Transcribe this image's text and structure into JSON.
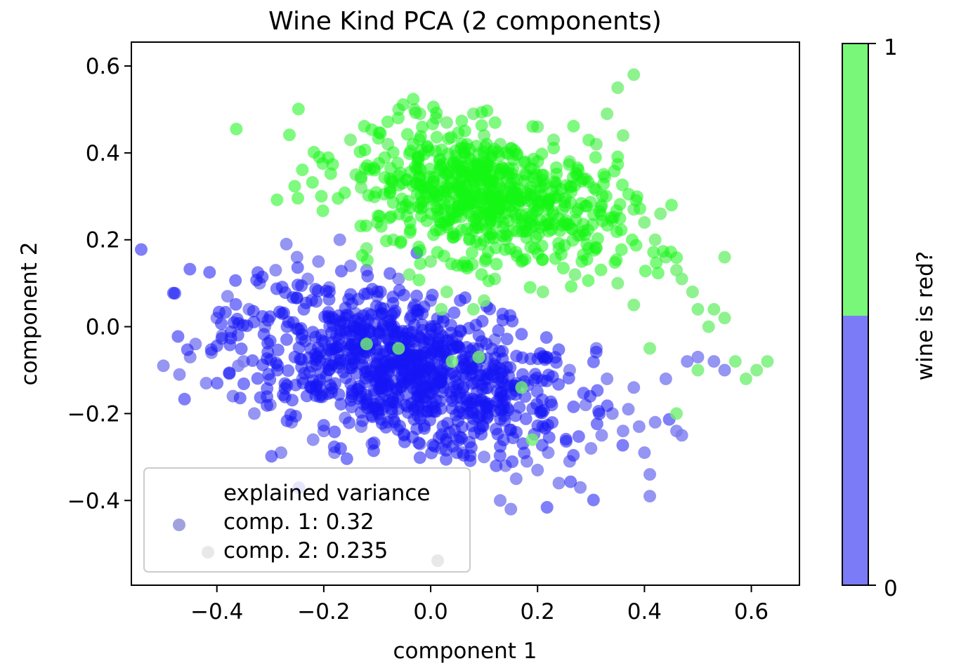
{
  "chart_data": {
    "type": "scatter",
    "title": "Wine Kind PCA (2 components)",
    "xlabel": "component 1",
    "ylabel": "component 2",
    "xlim": [
      -0.56,
      0.69
    ],
    "ylim": [
      -0.595,
      0.655
    ],
    "x_ticks": [
      "−0.4",
      "−0.2",
      "0.0",
      "0.2",
      "0.4",
      "0.6"
    ],
    "x_tick_values": [
      -0.4,
      -0.2,
      0.0,
      0.2,
      0.4,
      0.6
    ],
    "y_ticks": [
      "−0.4",
      "−0.2",
      "0.0",
      "0.2",
      "0.4",
      "0.6"
    ],
    "y_tick_values": [
      -0.4,
      -0.2,
      0.0,
      0.2,
      0.4,
      0.6
    ],
    "grid": false,
    "legend_placement": "lower-left",
    "legend": {
      "lines": [
        "explained variance",
        "comp. 1: 0.32",
        "comp. 2: 0.235"
      ]
    },
    "colorbar": {
      "label": "wine is red?",
      "ticks": [
        "0",
        "1"
      ],
      "tick_values": [
        0,
        1
      ],
      "colors": [
        "#7b7bf7",
        "#78f778"
      ],
      "boundary": 0.5
    },
    "series": [
      {
        "class_value": 0,
        "color": "#1515f5",
        "outlier_color": "#7b7bf0",
        "cluster": {
          "center": [
            -0.05,
            -0.1
          ],
          "spread": [
            0.16,
            0.08
          ],
          "tilt": -0.35
        },
        "points": [
          [
            -0.5,
            -0.09
          ],
          [
            -0.47,
            -0.11
          ],
          [
            -0.45,
            -0.07
          ],
          [
            -0.42,
            -0.13
          ],
          [
            -0.44,
            -0.04
          ],
          [
            -0.41,
            -0.06
          ],
          [
            -0.39,
            -0.02
          ],
          [
            -0.4,
            0.02
          ],
          [
            -0.38,
            0.07
          ],
          [
            -0.37,
            -0.16
          ],
          [
            -0.36,
            -0.09
          ],
          [
            -0.34,
            0.04
          ],
          [
            -0.33,
            -0.2
          ],
          [
            -0.32,
            0.1
          ],
          [
            -0.3,
            -0.18
          ],
          [
            -0.29,
            0.13
          ],
          [
            -0.28,
            -0.29
          ],
          [
            -0.27,
            0.19
          ],
          [
            -0.26,
            -0.22
          ],
          [
            -0.25,
            0.16
          ],
          [
            -0.24,
            -0.12
          ],
          [
            -0.23,
            0.11
          ],
          [
            -0.22,
            -0.26
          ],
          [
            -0.21,
            0.15
          ],
          [
            -0.2,
            -0.24
          ],
          [
            -0.19,
            0.09
          ],
          [
            -0.18,
            -0.29
          ],
          [
            -0.17,
            0.2
          ],
          [
            -0.16,
            -0.21
          ],
          [
            -0.15,
            0.14
          ],
          [
            -0.13,
            -0.23
          ],
          [
            -0.12,
            0.13
          ],
          [
            -0.11,
            -0.27
          ],
          [
            -0.1,
            0.07
          ],
          [
            -0.08,
            -0.22
          ],
          [
            -0.06,
            0.11
          ],
          [
            -0.05,
            -0.25
          ],
          [
            -0.03,
            0.05
          ],
          [
            -0.02,
            -0.27
          ],
          [
            0.0,
            0.06
          ],
          [
            0.02,
            -0.28
          ],
          [
            0.04,
            -0.03
          ],
          [
            0.06,
            -0.29
          ],
          [
            0.08,
            -0.05
          ],
          [
            0.1,
            -0.3
          ],
          [
            0.12,
            -0.1
          ],
          [
            0.14,
            -0.32
          ],
          [
            0.16,
            -0.35
          ],
          [
            0.15,
            -0.42
          ],
          [
            0.13,
            -0.4
          ],
          [
            0.18,
            -0.31
          ],
          [
            0.2,
            -0.33
          ],
          [
            0.22,
            -0.29
          ],
          [
            0.24,
            -0.36
          ],
          [
            0.26,
            -0.31
          ],
          [
            0.28,
            -0.37
          ],
          [
            0.3,
            -0.28
          ],
          [
            0.32,
            -0.25
          ],
          [
            0.34,
            -0.2
          ],
          [
            0.36,
            -0.24
          ],
          [
            0.38,
            -0.14
          ],
          [
            0.4,
            -0.29
          ],
          [
            0.41,
            -0.34
          ],
          [
            0.41,
            -0.39
          ],
          [
            0.42,
            -0.22
          ],
          [
            0.44,
            -0.12
          ],
          [
            0.46,
            -0.24
          ],
          [
            0.47,
            -0.25
          ],
          [
            0.48,
            -0.08
          ],
          [
            0.5,
            -0.07
          ],
          [
            0.53,
            -0.08
          ],
          [
            0.55,
            -0.1
          ],
          [
            0.39,
            -0.23
          ],
          [
            0.37,
            -0.19
          ],
          [
            0.33,
            -0.12
          ],
          [
            0.31,
            -0.05
          ],
          [
            0.29,
            -0.18
          ],
          [
            0.26,
            -0.1
          ],
          [
            0.12,
            -0.03
          ],
          [
            0.09,
            -0.08
          ],
          [
            -0.35,
            -0.08
          ],
          [
            -0.31,
            0.0
          ],
          [
            -0.14,
            0.03
          ],
          [
            -0.07,
            -0.05
          ]
        ]
      },
      {
        "class_value": 1,
        "color": "#14f514",
        "outlier_color": "#72f072",
        "cluster": {
          "center": [
            0.1,
            0.3
          ],
          "spread": [
            0.13,
            0.07
          ],
          "tilt": -0.3
        },
        "points": [
          [
            -0.15,
            0.43
          ],
          [
            -0.14,
            0.35
          ],
          [
            -0.13,
            0.34
          ],
          [
            -0.13,
            0.32
          ],
          [
            -0.08,
            0.42
          ],
          [
            -0.06,
            0.5
          ],
          [
            -0.03,
            0.5
          ],
          [
            -0.02,
            0.49
          ],
          [
            0.01,
            0.48
          ],
          [
            0.03,
            0.47
          ],
          [
            0.05,
            0.37
          ],
          [
            0.08,
            0.49
          ],
          [
            0.1,
            0.44
          ],
          [
            0.13,
            0.42
          ],
          [
            0.15,
            0.41
          ],
          [
            0.2,
            0.46
          ],
          [
            0.23,
            0.43
          ],
          [
            0.26,
            0.38
          ],
          [
            0.29,
            0.34
          ],
          [
            0.31,
            0.42
          ],
          [
            0.33,
            0.49
          ],
          [
            0.35,
            0.55
          ],
          [
            0.38,
            0.58
          ],
          [
            0.36,
            0.44
          ],
          [
            0.38,
            0.27
          ],
          [
            0.4,
            0.24
          ],
          [
            0.42,
            0.2
          ],
          [
            0.43,
            0.26
          ],
          [
            0.44,
            0.16
          ],
          [
            0.46,
            0.13
          ],
          [
            0.47,
            0.11
          ],
          [
            0.49,
            0.08
          ],
          [
            0.5,
            0.04
          ],
          [
            0.52,
            0.0
          ],
          [
            0.53,
            0.04
          ],
          [
            0.55,
            0.02
          ],
          [
            0.55,
            0.16
          ],
          [
            0.57,
            -0.08
          ],
          [
            0.59,
            -0.12
          ],
          [
            0.61,
            -0.1
          ],
          [
            0.63,
            -0.08
          ],
          [
            0.5,
            -0.1
          ],
          [
            0.46,
            -0.2
          ],
          [
            0.41,
            -0.05
          ],
          [
            0.38,
            0.05
          ],
          [
            0.35,
            0.1
          ],
          [
            0.31,
            0.18
          ],
          [
            0.27,
            0.12
          ],
          [
            0.24,
            0.18
          ],
          [
            0.21,
            0.08
          ],
          [
            0.19,
            0.23
          ],
          [
            0.17,
            0.15
          ],
          [
            0.14,
            0.2
          ],
          [
            0.12,
            0.11
          ],
          [
            0.1,
            0.06
          ],
          [
            0.06,
            0.14
          ],
          [
            0.03,
            0.08
          ],
          [
            0.0,
            0.15
          ],
          [
            -0.04,
            0.12
          ],
          [
            -0.07,
            0.2
          ],
          [
            -0.1,
            0.24
          ],
          [
            -0.12,
            0.18
          ],
          [
            0.04,
            0.26
          ],
          [
            0.08,
            0.3
          ],
          [
            0.15,
            0.33
          ],
          [
            0.18,
            0.29
          ],
          [
            0.22,
            0.27
          ],
          [
            0.25,
            0.24
          ],
          [
            0.28,
            0.21
          ],
          [
            0.32,
            0.28
          ],
          [
            0.02,
            0.04
          ],
          [
            0.08,
            0.04
          ],
          [
            0.17,
            -0.14
          ],
          [
            0.19,
            -0.26
          ],
          [
            0.04,
            -0.08
          ],
          [
            0.09,
            -0.07
          ],
          [
            -0.12,
            -0.04
          ],
          [
            -0.06,
            -0.05
          ]
        ]
      }
    ]
  }
}
